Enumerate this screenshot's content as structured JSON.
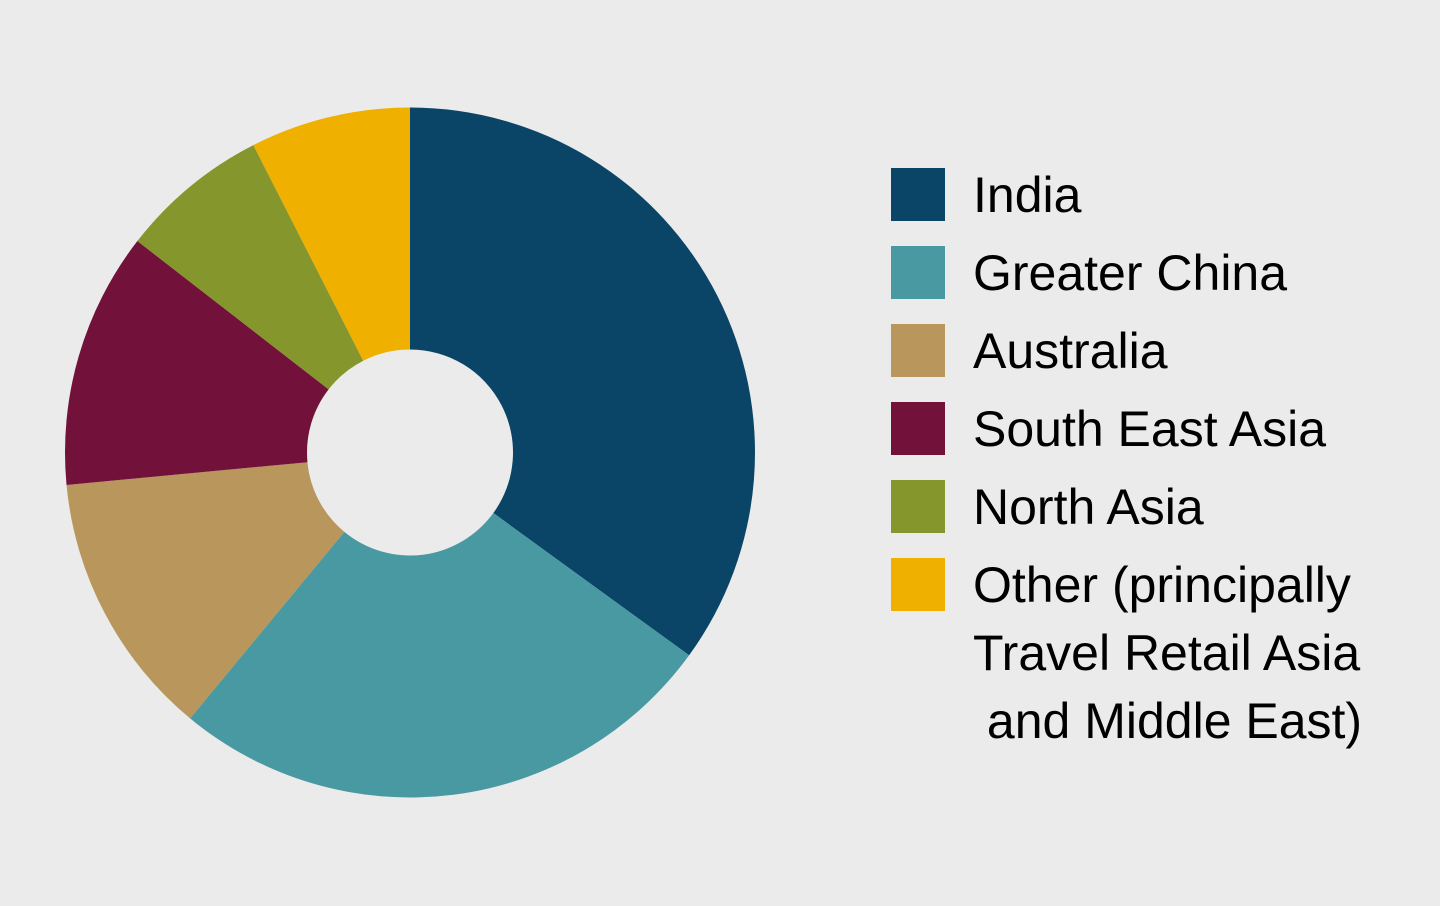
{
  "chart_data": {
    "type": "donut",
    "categories": [
      "India",
      "Greater China",
      "Australia",
      "South East Asia",
      "North Asia",
      "Other (principally\nTravel Retail Asia\n and Middle East)"
    ],
    "values": [
      35,
      26,
      12.5,
      12,
      7,
      7.5
    ],
    "colors": [
      "#0a4466",
      "#4899a1",
      "#b8965c",
      "#72123a",
      "#84962c",
      "#f0b000"
    ],
    "legend": "right"
  }
}
